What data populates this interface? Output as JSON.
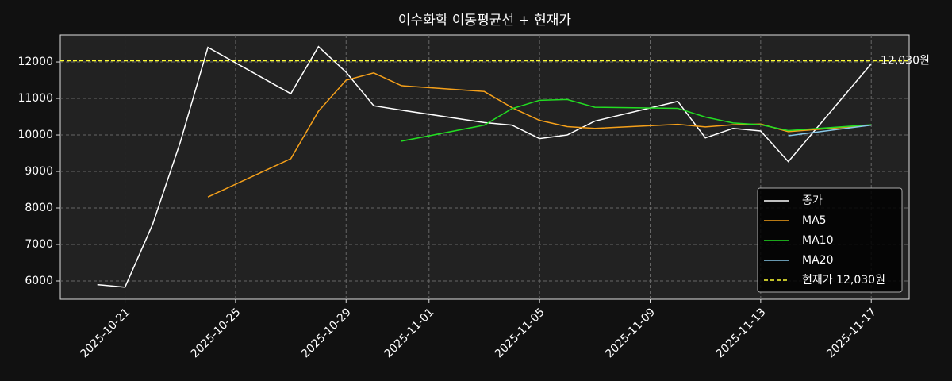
{
  "chart_data": {
    "type": "line",
    "title": "이수화학 이동평균선 + 현재가",
    "x": [
      "2025-10-20",
      "2025-10-21",
      "2025-10-22",
      "2025-10-23",
      "2025-10-24",
      "2025-10-27",
      "2025-10-28",
      "2025-10-29",
      "2025-10-30",
      "2025-10-31",
      "2025-11-03",
      "2025-11-04",
      "2025-11-05",
      "2025-11-06",
      "2025-11-07",
      "2025-11-10",
      "2025-11-11",
      "2025-11-12",
      "2025-11-13",
      "2025-11-14",
      "2025-11-17"
    ],
    "series": [
      {
        "name": "종가",
        "color": "#ffffff",
        "values": [
          5900,
          5830,
          7550,
          9800,
          12400,
          11130,
          12420,
          11720,
          10800,
          10680,
          10340,
          10270,
          9900,
          10000,
          10380,
          10920,
          9920,
          10180,
          10110,
          9270,
          11950
        ]
      },
      {
        "name": "MA5",
        "color": "#f5a01a",
        "values": [
          null,
          null,
          null,
          null,
          8300,
          9350,
          10650,
          11500,
          11700,
          11350,
          11190,
          10750,
          10400,
          10230,
          10180,
          10290,
          10220,
          10280,
          10300,
          10090,
          10270
        ]
      },
      {
        "name": "MA10",
        "color": "#22dd22",
        "values": [
          null,
          null,
          null,
          null,
          null,
          null,
          null,
          null,
          null,
          9830,
          10270,
          10720,
          10950,
          10970,
          10760,
          10730,
          10490,
          10330,
          10280,
          10120,
          10280
        ]
      },
      {
        "name": "MA20",
        "color": "#88c8e8",
        "values": [
          null,
          null,
          null,
          null,
          null,
          null,
          null,
          null,
          null,
          null,
          null,
          null,
          null,
          null,
          null,
          null,
          null,
          null,
          null,
          9980,
          10270
        ]
      }
    ],
    "hline": {
      "name": "현재가 12,030원",
      "value": 12030,
      "label": "12,030원",
      "color": "#ffff33"
    },
    "xlim": [
      "2025-10-18T15:50:00Z",
      "2025-11-18T08:55:00Z"
    ],
    "xticks": [
      "2025-10-21",
      "2025-10-25",
      "2025-10-29",
      "2025-11-01",
      "2025-11-05",
      "2025-11-09",
      "2025-11-13",
      "2025-11-17"
    ],
    "ylim": [
      5500,
      12740
    ],
    "yticks": [
      6000,
      7000,
      8000,
      9000,
      10000,
      11000,
      12000
    ],
    "grid": true,
    "legend": "lower right"
  }
}
